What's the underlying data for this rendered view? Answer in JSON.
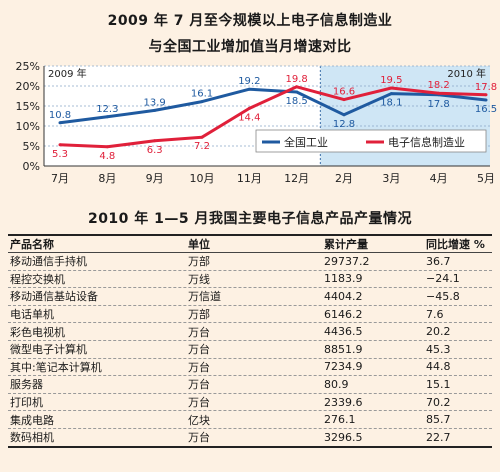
{
  "chart_title_line1": "2009 年 7 月至今规模以上电子信息制造业",
  "chart_title_line2": "与全国工业增加值当月增速对比",
  "chart_data": {
    "type": "line",
    "categories": [
      "7月",
      "8月",
      "9月",
      "10月",
      "11月",
      "12月",
      "2月",
      "3月",
      "4月",
      "5月"
    ],
    "year_labels": [
      "2009 年",
      "2010 年"
    ],
    "ylim": [
      0,
      25
    ],
    "yticks": [
      "0%",
      "5%",
      "10%",
      "15%",
      "20%",
      "25%"
    ],
    "series": [
      {
        "name": "全国工业",
        "color": "#1f5aa0",
        "values": [
          10.8,
          12.3,
          13.9,
          16.1,
          19.2,
          18.5,
          12.8,
          18.1,
          17.8,
          16.5
        ],
        "labels": [
          "10.8",
          "12.3",
          "13.9",
          "16.1",
          "19.2",
          "18.5",
          "12.8",
          "18.1",
          "17.8",
          "16.5"
        ]
      },
      {
        "name": "电子信息制造业",
        "color": "#e0203a",
        "values": [
          5.3,
          4.8,
          6.3,
          7.2,
          14.4,
          19.8,
          16.6,
          19.5,
          18.2,
          17.8
        ],
        "labels": [
          "5.3",
          "4.8",
          "6.3",
          "7.2",
          "14.4",
          "19.8",
          "16.6",
          "19.5",
          "18.2",
          "17.8"
        ]
      }
    ]
  },
  "table": {
    "title": "2010 年 1—5 月我国主要电子信息产品产量情况",
    "headers": [
      "产品名称",
      "单位",
      "累计产量",
      "同比增速 %"
    ],
    "rows": [
      [
        "移动通信手持机",
        "万部",
        "29737.2",
        "36.7"
      ],
      [
        "程控交换机",
        "万线",
        "1183.9",
        "−24.1"
      ],
      [
        "移动通信基站设备",
        "万信道",
        "4404.2",
        "−45.8"
      ],
      [
        "电话单机",
        "万部",
        "6146.2",
        "7.6"
      ],
      [
        "彩色电视机",
        "万台",
        "4436.5",
        "20.2"
      ],
      [
        "微型电子计算机",
        "万台",
        "8851.9",
        "45.3"
      ],
      [
        "其中:笔记本计算机",
        "万台",
        "7234.9",
        "44.8"
      ],
      [
        "服务器",
        "万台",
        "80.9",
        "15.1"
      ],
      [
        "打印机",
        "万台",
        "2339.6",
        "70.2"
      ],
      [
        "集成电路",
        "亿块",
        "276.1",
        "85.7"
      ],
      [
        "数码相机",
        "万台",
        "3296.5",
        "22.7"
      ]
    ]
  }
}
